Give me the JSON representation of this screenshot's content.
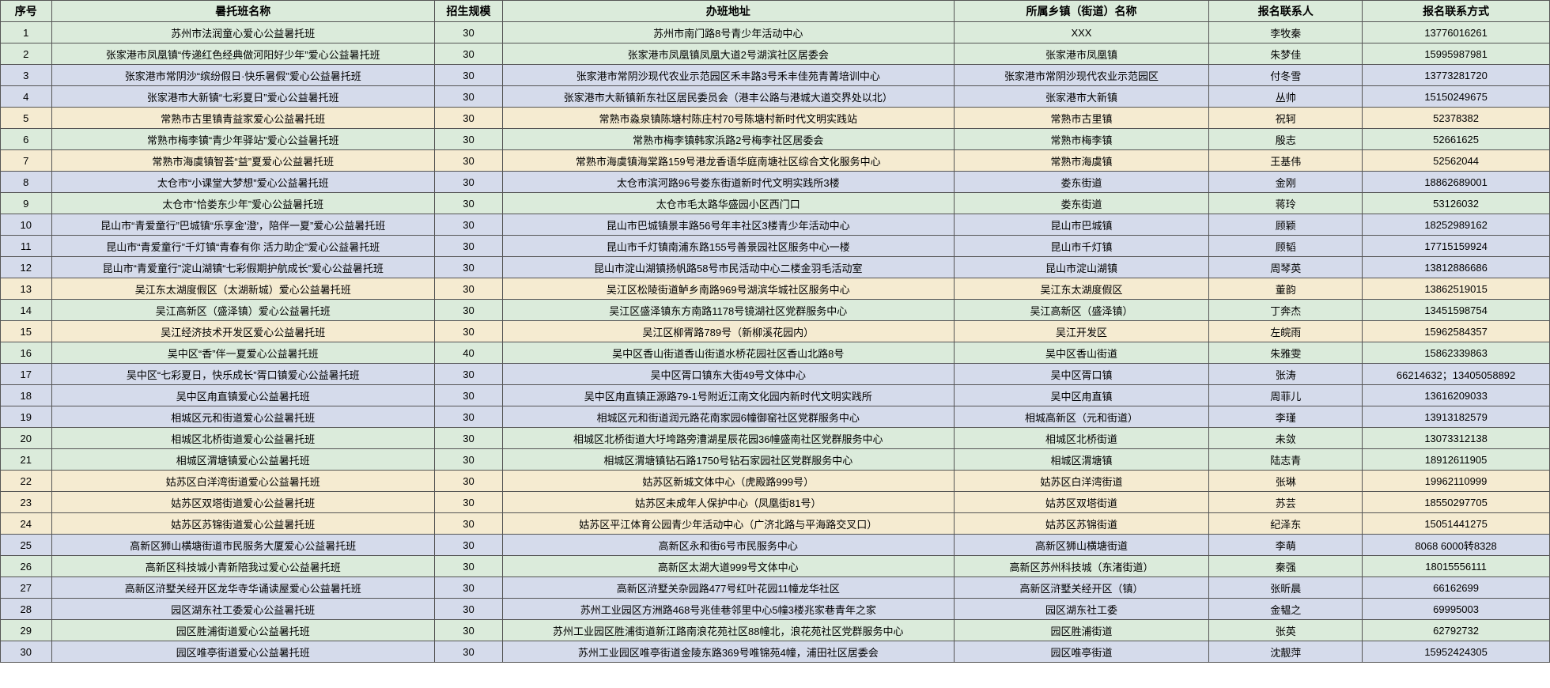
{
  "columns": [
    {
      "key": "idx",
      "label": "序号",
      "class": "col-idx"
    },
    {
      "key": "name",
      "label": "暑托班名称",
      "class": "col-name"
    },
    {
      "key": "size",
      "label": "招生规模",
      "class": "col-size"
    },
    {
      "key": "addr",
      "label": "办班地址",
      "class": "col-addr"
    },
    {
      "key": "town",
      "label": "所属乡镇（街道）名称",
      "class": "col-town"
    },
    {
      "key": "contact",
      "label": "报名联系人",
      "class": "col-contact"
    },
    {
      "key": "phone",
      "label": "报名联系方式",
      "class": "col-phone"
    }
  ],
  "header_bg": "bg-green",
  "rows": [
    {
      "bg": "bg-green",
      "idx": "1",
      "name": "苏州市法润童心爱心公益暑托班",
      "size": "30",
      "addr": "苏州市南门路8号青少年活动中心",
      "town": "XXX",
      "contact": "李牧秦",
      "phone": "13776016261"
    },
    {
      "bg": "bg-green",
      "idx": "2",
      "name": "张家港市凤凰镇“传递红色经典做河阳好少年”爱心公益暑托班",
      "size": "30",
      "addr": "张家港市凤凰镇凤凰大道2号湖滨社区居委会",
      "town": "张家港市凤凰镇",
      "contact": "朱梦佳",
      "phone": "15995987981"
    },
    {
      "bg": "bg-blue",
      "idx": "3",
      "name": "张家港市常阴沙“缤纷假日·快乐暑假”爱心公益暑托班",
      "size": "30",
      "addr": "张家港市常阴沙现代农业示范园区禾丰路3号禾丰佳苑青菁培训中心",
      "town": "张家港市常阴沙现代农业示范园区",
      "contact": "付冬雪",
      "phone": "13773281720"
    },
    {
      "bg": "bg-blue",
      "idx": "4",
      "name": "张家港市大新镇“七彩夏日”爱心公益暑托班",
      "size": "30",
      "addr": "张家港市大新镇新东社区居民委员会（港丰公路与港城大道交界处以北）",
      "town": "张家港市大新镇",
      "contact": "丛帅",
      "phone": "15150249675"
    },
    {
      "bg": "bg-yellow",
      "idx": "5",
      "name": "常熟市古里镇青益家爱心公益暑托班",
      "size": "30",
      "addr": "常熟市淼泉镇陈塘村陈庄村70号陈塘村新时代文明实践站",
      "town": "常熟市古里镇",
      "contact": "祝轲",
      "phone": "52378382"
    },
    {
      "bg": "bg-green",
      "idx": "6",
      "name": "常熟市梅李镇“青少年驿站”爱心公益暑托班",
      "size": "30",
      "addr": "常熟市梅李镇韩家浜路2号梅李社区居委会",
      "town": "常熟市梅李镇",
      "contact": "殷志",
      "phone": "52661625"
    },
    {
      "bg": "bg-yellow",
      "idx": "7",
      "name": "常熟市海虞镇智荟“益”夏爱心公益暑托班",
      "size": "30",
      "addr": "常熟市海虞镇海棠路159号港龙香语华庭南塘社区综合文化服务中心",
      "town": "常熟市海虞镇",
      "contact": "王基伟",
      "phone": "52562044"
    },
    {
      "bg": "bg-blue",
      "idx": "8",
      "name": "太仓市“小课堂大梦想”爱心公益暑托班",
      "size": "30",
      "addr": "太仓市滨河路96号娄东街道新时代文明实践所3楼",
      "town": "娄东街道",
      "contact": "金刚",
      "phone": "18862689001"
    },
    {
      "bg": "bg-green",
      "idx": "9",
      "name": "太仓市“恰娄东少年”爱心公益暑托班",
      "size": "30",
      "addr": "太仓市毛太路华盛园小区西门口",
      "town": "娄东街道",
      "contact": "蒋玲",
      "phone": "53126032"
    },
    {
      "bg": "bg-blue",
      "idx": "10",
      "name": "昆山市“青爱童行”巴城镇“乐享金'澄'，陪伴一夏”爱心公益暑托班",
      "size": "30",
      "addr": "昆山市巴城镇景丰路56号年丰社区3楼青少年活动中心",
      "town": "昆山市巴城镇",
      "contact": "顾颖",
      "phone": "18252989162"
    },
    {
      "bg": "bg-blue",
      "idx": "11",
      "name": "昆山市“青爱童行”千灯镇“青春有你 活力助企”爱心公益暑托班",
      "size": "30",
      "addr": "昆山市千灯镇南浦东路155号善景园社区服务中心一楼",
      "town": "昆山市千灯镇",
      "contact": "顾韬",
      "phone": "17715159924"
    },
    {
      "bg": "bg-blue",
      "idx": "12",
      "name": "昆山市“青爱童行”淀山湖镇“七彩假期护航成长”爱心公益暑托班",
      "size": "30",
      "addr": "昆山市淀山湖镇扬帆路58号市民活动中心二楼金羽毛活动室",
      "town": "昆山市淀山湖镇",
      "contact": "周琴英",
      "phone": "13812886686"
    },
    {
      "bg": "bg-yellow",
      "idx": "13",
      "name": "吴江东太湖度假区（太湖新城）爱心公益暑托班",
      "size": "30",
      "addr": "吴江区松陵街道鲈乡南路969号湖滨华城社区服务中心",
      "town": "吴江东太湖度假区",
      "contact": "董韵",
      "phone": "13862519015"
    },
    {
      "bg": "bg-green",
      "idx": "14",
      "name": "吴江高新区（盛泽镇）爱心公益暑托班",
      "size": "30",
      "addr": "吴江区盛泽镇东方南路1178号镜湖社区党群服务中心",
      "town": "吴江高新区（盛泽镇）",
      "contact": "丁奔杰",
      "phone": "13451598754"
    },
    {
      "bg": "bg-yellow",
      "idx": "15",
      "name": "吴江经济技术开发区爱心公益暑托班",
      "size": "30",
      "addr": "吴江区柳胥路789号（新柳溪花园内）",
      "town": "吴江开发区",
      "contact": "左皖雨",
      "phone": "15962584357"
    },
    {
      "bg": "bg-green",
      "idx": "16",
      "name": "吴中区“香”伴一夏爱心公益暑托班",
      "size": "40",
      "addr": "吴中区香山街道香山街道水桥花园社区香山北路8号",
      "town": "吴中区香山街道",
      "contact": "朱雅雯",
      "phone": "15862339863"
    },
    {
      "bg": "bg-blue",
      "idx": "17",
      "name": "吴中区“七彩夏日，快乐成长”胥口镇爱心公益暑托班",
      "size": "30",
      "addr": "吴中区胥口镇东大街49号文体中心",
      "town": "吴中区胥口镇",
      "contact": "张涛",
      "phone": "66214632；13405058892"
    },
    {
      "bg": "bg-blue",
      "idx": "18",
      "name": "吴中区甪直镇爱心公益暑托班",
      "size": "30",
      "addr": "吴中区甪直镇正源路79-1号附近江南文化园内新时代文明实践所",
      "town": "吴中区甪直镇",
      "contact": "周菲儿",
      "phone": "13616209033"
    },
    {
      "bg": "bg-blue",
      "idx": "19",
      "name": "相城区元和街道爱心公益暑托班",
      "size": "30",
      "addr": "相城区元和街道润元路花南家园6幢御窑社区党群服务中心",
      "town": "相城高新区（元和街道）",
      "contact": "李瑾",
      "phone": "13913182579"
    },
    {
      "bg": "bg-green",
      "idx": "20",
      "name": "相城区北桥街道爱心公益暑托班",
      "size": "30",
      "addr": "相城区北桥街道大圩垮路旁漕湖星辰花园36幢盛南社区党群服务中心",
      "town": "相城区北桥街道",
      "contact": "未敛",
      "phone": "13073312138"
    },
    {
      "bg": "bg-green",
      "idx": "21",
      "name": "相城区渭塘镇爱心公益暑托班",
      "size": "30",
      "addr": "相城区渭塘镇钻石路1750号钻石家园社区党群服务中心",
      "town": "相城区渭塘镇",
      "contact": "陆志青",
      "phone": "18912611905"
    },
    {
      "bg": "bg-yellow",
      "idx": "22",
      "name": "姑苏区白洋湾街道爱心公益暑托班",
      "size": "30",
      "addr": "姑苏区新城文体中心（虎殿路999号）",
      "town": "姑苏区白洋湾街道",
      "contact": "张琳",
      "phone": "19962110999"
    },
    {
      "bg": "bg-yellow",
      "idx": "23",
      "name": "姑苏区双塔街道爱心公益暑托班",
      "size": "30",
      "addr": "姑苏区未成年人保护中心（凤凰街81号）",
      "town": "姑苏区双塔街道",
      "contact": "苏芸",
      "phone": "18550297705"
    },
    {
      "bg": "bg-yellow",
      "idx": "24",
      "name": "姑苏区苏锦街道爱心公益暑托班",
      "size": "30",
      "addr": "姑苏区平江体育公园青少年活动中心（广济北路与平海路交叉口）",
      "town": "姑苏区苏锦街道",
      "contact": "纪泽东",
      "phone": "15051441275"
    },
    {
      "bg": "bg-blue",
      "idx": "25",
      "name": "高新区狮山横塘街道市民服务大厦爱心公益暑托班",
      "size": "30",
      "addr": "高新区永和街6号市民服务中心",
      "town": "高新区狮山横塘街道",
      "contact": "李萌",
      "phone": "8068 6000转8328"
    },
    {
      "bg": "bg-green",
      "idx": "26",
      "name": "高新区科技城小青新陪我过爱心公益暑托班",
      "size": "30",
      "addr": "高新区太湖大道999号文体中心",
      "town": "高新区苏州科技城（东渚街道）",
      "contact": "秦强",
      "phone": "18015556111"
    },
    {
      "bg": "bg-blue",
      "idx": "27",
      "name": "高新区浒墅关经开区龙华寺华诵读屋爱心公益暑托班",
      "size": "30",
      "addr": "高新区浒墅关杂园路477号红叶花园11幢龙华社区",
      "town": "高新区浒墅关经开区（镇）",
      "contact": "张昕晨",
      "phone": "66162699"
    },
    {
      "bg": "bg-blue",
      "idx": "28",
      "name": "园区湖东社工委爱心公益暑托班",
      "size": "30",
      "addr": "苏州工业园区方洲路468号兆佳巷邻里中心5幢3楼兆家巷青年之家",
      "town": "园区湖东社工委",
      "contact": "金韫之",
      "phone": "69995003"
    },
    {
      "bg": "bg-green",
      "idx": "29",
      "name": "园区胜浦街道爱心公益暑托班",
      "size": "30",
      "addr": "苏州工业园区胜浦街道新江路南浪花苑社区88幢北，浪花苑社区党群服务中心",
      "town": "园区胜浦街道",
      "contact": "张英",
      "phone": "62792732"
    },
    {
      "bg": "bg-blue",
      "idx": "30",
      "name": "园区唯亭街道爱心公益暑托班",
      "size": "30",
      "addr": "苏州工业园区唯亭街道金陵东路369号唯锦苑4幢，浦田社区居委会",
      "town": "园区唯亭街道",
      "contact": "沈靓萍",
      "phone": "15952424305"
    }
  ]
}
